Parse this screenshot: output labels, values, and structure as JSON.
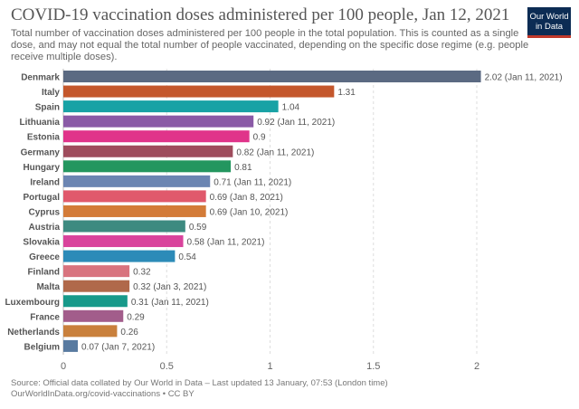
{
  "header": {
    "title": "COVID-19 vaccination doses administered per 100 people, Jan 12, 2021",
    "subtitle": "Total number of vaccination doses administered per 100 people in the total population. This is counted as a single dose, and may not equal the total number of people vaccinated, depending on the specific dose regime (e.g. people receive multiple doses).",
    "logo_line1": "Our World",
    "logo_line2": "in Data"
  },
  "footer": {
    "source": "Source: Official data collated by Our World in Data – Last updated 13 January, 07:53 (London time)",
    "credit": "OurWorldInData.org/covid-vaccinations • CC BY"
  },
  "chart_data": {
    "type": "bar",
    "orientation": "horizontal",
    "title": "COVID-19 vaccination doses administered per 100 people, Jan 12, 2021",
    "xlim": [
      0,
      2.02
    ],
    "x_ticks": [
      0,
      0.5,
      1,
      1.5,
      2
    ],
    "x_tick_labels": [
      "0",
      "0.5",
      "1",
      "1.5",
      "2"
    ],
    "grid": "vertical dashed",
    "categories": [
      "Denmark",
      "Italy",
      "Spain",
      "Lithuania",
      "Estonia",
      "Germany",
      "Hungary",
      "Ireland",
      "Portugal",
      "Cyprus",
      "Austria",
      "Slovakia",
      "Greece",
      "Finland",
      "Malta",
      "Luxembourg",
      "France",
      "Netherlands",
      "Belgium"
    ],
    "values": [
      2.02,
      1.31,
      1.04,
      0.92,
      0.9,
      0.82,
      0.81,
      0.71,
      0.69,
      0.69,
      0.59,
      0.58,
      0.54,
      0.32,
      0.32,
      0.31,
      0.29,
      0.26,
      0.07
    ],
    "value_labels": [
      "2.02 (Jan 11, 2021)",
      "1.31",
      "1.04",
      "0.92 (Jan 11, 2021)",
      "0.9",
      "0.82 (Jan 11, 2021)",
      "0.81",
      "0.71 (Jan 11, 2021)",
      "0.69 (Jan 8, 2021)",
      "0.69 (Jan 10, 2021)",
      "0.59",
      "0.58 (Jan 11, 2021)",
      "0.54",
      "0.32",
      "0.32 (Jan 3, 2021)",
      "0.31 (Jan 11, 2021)",
      "0.29",
      "0.26",
      "0.07 (Jan 7, 2021)"
    ],
    "colors": [
      "#5b6a82",
      "#c4572c",
      "#18a2a5",
      "#8a5aa6",
      "#e0348a",
      "#9e4c5c",
      "#23965f",
      "#6b85b2",
      "#e0596c",
      "#d37b38",
      "#3d8a80",
      "#d9439c",
      "#2c8bb8",
      "#d8737e",
      "#b0694a",
      "#17998a",
      "#a25d8b",
      "#c9803c",
      "#587aa0"
    ]
  }
}
